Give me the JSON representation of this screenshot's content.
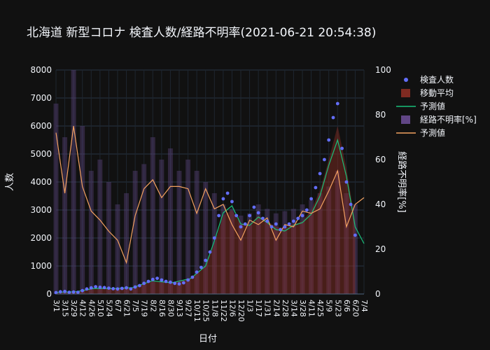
{
  "chart_data": {
    "type": "combo",
    "title": "北海道 新型コロナ 検査人数/経路不明率(2021-06-21 20:54:38)",
    "xlabel": "日付",
    "ylabel_left": "人数",
    "ylabel_right": "経路不明率[%]",
    "ylim_left": [
      0,
      8000
    ],
    "ylim_right": [
      0,
      100
    ],
    "yticks_left": [
      "0",
      "1000",
      "2000",
      "3000",
      "4000",
      "5000",
      "6000",
      "7000",
      "8000"
    ],
    "yticks_right": [
      "0",
      "20",
      "40",
      "60",
      "80",
      "100"
    ],
    "x_range": [
      "2020-03-01",
      "2021-07-04"
    ],
    "x_ticks": [
      "3/1",
      "3/15",
      "3/29",
      "4/12",
      "4/26",
      "5/10",
      "5/24",
      "6/7",
      "6/21",
      "7/5",
      "7/19",
      "8/2",
      "8/16",
      "8/30",
      "9/13",
      "9/27",
      "10/11",
      "10/25",
      "11/8",
      "11/22",
      "12/6",
      "12/20",
      "1/3",
      "1/17",
      "1/31",
      "2/14",
      "2/28",
      "3/14",
      "3/28",
      "4/11",
      "4/25",
      "5/9",
      "5/23",
      "6/6",
      "6/20",
      "7/4"
    ],
    "legend": {
      "position": "right",
      "items": [
        {
          "label": "検査人数",
          "kind": "marker",
          "color": "#636efa"
        },
        {
          "label": "移動平均",
          "kind": "bar",
          "color": "#8b2e24"
        },
        {
          "label": "予測値",
          "kind": "line",
          "color": "#19c07a"
        },
        {
          "label": "経路不明率[%]",
          "kind": "bar",
          "color": "#6a4c93"
        },
        {
          "label": "予測値",
          "kind": "line",
          "color": "#f4a261"
        }
      ]
    },
    "series": [
      {
        "name": "検査人数",
        "kind": "scatter",
        "axis": "left",
        "points": [
          [
            "2020-03-01",
            50
          ],
          [
            "2020-03-08",
            80
          ],
          [
            "2020-03-15",
            90
          ],
          [
            "2020-03-22",
            60
          ],
          [
            "2020-03-29",
            70
          ],
          [
            "2020-04-05",
            60
          ],
          [
            "2020-04-12",
            120
          ],
          [
            "2020-04-19",
            180
          ],
          [
            "2020-04-26",
            220
          ],
          [
            "2020-05-03",
            260
          ],
          [
            "2020-05-10",
            240
          ],
          [
            "2020-05-17",
            230
          ],
          [
            "2020-05-24",
            210
          ],
          [
            "2020-05-31",
            190
          ],
          [
            "2020-06-07",
            180
          ],
          [
            "2020-06-14",
            200
          ],
          [
            "2020-06-21",
            220
          ],
          [
            "2020-06-28",
            180
          ],
          [
            "2020-07-05",
            250
          ],
          [
            "2020-07-12",
            300
          ],
          [
            "2020-07-19",
            380
          ],
          [
            "2020-07-26",
            450
          ],
          [
            "2020-08-02",
            520
          ],
          [
            "2020-08-09",
            560
          ],
          [
            "2020-08-16",
            500
          ],
          [
            "2020-08-23",
            450
          ],
          [
            "2020-08-30",
            420
          ],
          [
            "2020-09-06",
            380
          ],
          [
            "2020-09-13",
            360
          ],
          [
            "2020-09-20",
            400
          ],
          [
            "2020-09-27",
            500
          ],
          [
            "2020-10-04",
            600
          ],
          [
            "2020-10-11",
            780
          ],
          [
            "2020-10-18",
            950
          ],
          [
            "2020-10-25",
            1200
          ],
          [
            "2020-11-01",
            1500
          ],
          [
            "2020-11-08",
            2000
          ],
          [
            "2020-11-15",
            2800
          ],
          [
            "2020-11-22",
            3400
          ],
          [
            "2020-11-29",
            3600
          ],
          [
            "2020-12-06",
            3300
          ],
          [
            "2020-12-13",
            2800
          ],
          [
            "2020-12-20",
            2400
          ],
          [
            "2020-12-27",
            2500
          ],
          [
            "2021-01-03",
            2800
          ],
          [
            "2021-01-10",
            3100
          ],
          [
            "2021-01-17",
            2900
          ],
          [
            "2021-01-24",
            2700
          ],
          [
            "2021-01-31",
            2600
          ],
          [
            "2021-02-07",
            2400
          ],
          [
            "2021-02-14",
            2500
          ],
          [
            "2021-02-21",
            2300
          ],
          [
            "2021-02-28",
            2400
          ],
          [
            "2021-03-07",
            2500
          ],
          [
            "2021-03-14",
            2600
          ],
          [
            "2021-03-21",
            2700
          ],
          [
            "2021-03-28",
            2800
          ],
          [
            "2021-04-04",
            3000
          ],
          [
            "2021-04-11",
            3400
          ],
          [
            "2021-04-18",
            3800
          ],
          [
            "2021-04-25",
            4300
          ],
          [
            "2021-05-02",
            4800
          ],
          [
            "2021-05-09",
            5500
          ],
          [
            "2021-05-16",
            6300
          ],
          [
            "2021-05-23",
            6800
          ],
          [
            "2021-05-30",
            5200
          ],
          [
            "2021-06-06",
            4000
          ],
          [
            "2021-06-13",
            3200
          ],
          [
            "2021-06-20",
            2100
          ]
        ]
      },
      {
        "name": "移動平均",
        "kind": "area",
        "axis": "left",
        "points": [
          [
            "2020-03-01",
            60
          ],
          [
            "2020-04-01",
            80
          ],
          [
            "2020-05-01",
            210
          ],
          [
            "2020-06-01",
            200
          ],
          [
            "2020-07-01",
            220
          ],
          [
            "2020-08-01",
            450
          ],
          [
            "2020-09-01",
            400
          ],
          [
            "2020-10-01",
            550
          ],
          [
            "2020-10-25",
            1000
          ],
          [
            "2020-11-08",
            1800
          ],
          [
            "2020-11-22",
            2800
          ],
          [
            "2020-12-06",
            3000
          ],
          [
            "2020-12-20",
            2500
          ],
          [
            "2021-01-03",
            2500
          ],
          [
            "2021-01-17",
            2800
          ],
          [
            "2021-01-31",
            2600
          ],
          [
            "2021-02-14",
            2400
          ],
          [
            "2021-02-28",
            2350
          ],
          [
            "2021-03-14",
            2500
          ],
          [
            "2021-03-28",
            2600
          ],
          [
            "2021-04-11",
            3000
          ],
          [
            "2021-04-25",
            3700
          ],
          [
            "2021-05-09",
            4800
          ],
          [
            "2021-05-23",
            6000
          ],
          [
            "2021-06-06",
            4500
          ],
          [
            "2021-06-20",
            2600
          ]
        ]
      },
      {
        "name": "予測値",
        "kind": "line",
        "axis": "left",
        "points": [
          [
            "2020-03-01",
            60
          ],
          [
            "2020-04-01",
            80
          ],
          [
            "2020-05-01",
            200
          ],
          [
            "2020-06-01",
            190
          ],
          [
            "2020-07-01",
            230
          ],
          [
            "2020-08-01",
            470
          ],
          [
            "2020-09-01",
            400
          ],
          [
            "2020-10-01",
            550
          ],
          [
            "2020-10-25",
            1000
          ],
          [
            "2020-11-08",
            1900
          ],
          [
            "2020-11-22",
            2900
          ],
          [
            "2020-12-06",
            3150
          ],
          [
            "2020-12-20",
            2500
          ],
          [
            "2021-01-03",
            2450
          ],
          [
            "2021-01-17",
            2750
          ],
          [
            "2021-01-31",
            2550
          ],
          [
            "2021-02-14",
            2300
          ],
          [
            "2021-02-28",
            2250
          ],
          [
            "2021-03-14",
            2450
          ],
          [
            "2021-03-28",
            2550
          ],
          [
            "2021-04-11",
            2850
          ],
          [
            "2021-04-25",
            3500
          ],
          [
            "2021-05-09",
            4600
          ],
          [
            "2021-05-23",
            5500
          ],
          [
            "2021-06-06",
            4200
          ],
          [
            "2021-06-20",
            2400
          ],
          [
            "2021-07-04",
            1800
          ]
        ]
      },
      {
        "name": "経路不明率[%]",
        "kind": "bar",
        "axis": "right",
        "points": [
          [
            "2020-03-01",
            85
          ],
          [
            "2020-03-15",
            70
          ],
          [
            "2020-03-29",
            100
          ],
          [
            "2020-04-12",
            75
          ],
          [
            "2020-04-26",
            55
          ],
          [
            "2020-05-10",
            60
          ],
          [
            "2020-05-24",
            50
          ],
          [
            "2020-06-07",
            40
          ],
          [
            "2020-06-21",
            45
          ],
          [
            "2020-07-05",
            55
          ],
          [
            "2020-07-19",
            58
          ],
          [
            "2020-08-02",
            70
          ],
          [
            "2020-08-16",
            60
          ],
          [
            "2020-08-30",
            65
          ],
          [
            "2020-09-13",
            55
          ],
          [
            "2020-09-27",
            60
          ],
          [
            "2020-10-11",
            55
          ],
          [
            "2020-10-25",
            50
          ],
          [
            "2020-11-08",
            45
          ],
          [
            "2020-11-22",
            40
          ],
          [
            "2020-12-06",
            38
          ],
          [
            "2020-12-20",
            35
          ],
          [
            "2021-01-03",
            36
          ],
          [
            "2021-01-17",
            40
          ],
          [
            "2021-01-31",
            38
          ],
          [
            "2021-02-14",
            36
          ],
          [
            "2021-02-28",
            37
          ],
          [
            "2021-03-14",
            38
          ],
          [
            "2021-03-28",
            40
          ],
          [
            "2021-04-11",
            42
          ],
          [
            "2021-04-25",
            45
          ],
          [
            "2021-05-09",
            48
          ],
          [
            "2021-05-23",
            55
          ],
          [
            "2021-06-06",
            45
          ],
          [
            "2021-06-20",
            40
          ]
        ]
      },
      {
        "name": "予測値",
        "kind": "line",
        "axis": "right",
        "points": [
          [
            "2020-03-01",
            72
          ],
          [
            "2020-03-15",
            45
          ],
          [
            "2020-03-29",
            75
          ],
          [
            "2020-04-12",
            48
          ],
          [
            "2020-04-26",
            37
          ],
          [
            "2020-05-10",
            33
          ],
          [
            "2020-05-24",
            28
          ],
          [
            "2020-06-07",
            24
          ],
          [
            "2020-06-21",
            14
          ],
          [
            "2020-07-05",
            35
          ],
          [
            "2020-07-19",
            47
          ],
          [
            "2020-08-02",
            51
          ],
          [
            "2020-08-16",
            43
          ],
          [
            "2020-08-30",
            48
          ],
          [
            "2020-09-13",
            48
          ],
          [
            "2020-09-27",
            47
          ],
          [
            "2020-10-11",
            36
          ],
          [
            "2020-10-25",
            47
          ],
          [
            "2020-11-08",
            38
          ],
          [
            "2020-11-22",
            40
          ],
          [
            "2020-12-06",
            31
          ],
          [
            "2020-12-20",
            24
          ],
          [
            "2021-01-03",
            33
          ],
          [
            "2021-01-17",
            31
          ],
          [
            "2021-01-31",
            34
          ],
          [
            "2021-02-14",
            24
          ],
          [
            "2021-02-28",
            31
          ],
          [
            "2021-03-14",
            30
          ],
          [
            "2021-03-28",
            37
          ],
          [
            "2021-04-11",
            36
          ],
          [
            "2021-04-25",
            38
          ],
          [
            "2021-05-09",
            46
          ],
          [
            "2021-05-23",
            55
          ],
          [
            "2021-06-06",
            30
          ],
          [
            "2021-06-20",
            40
          ],
          [
            "2021-07-04",
            43
          ]
        ]
      }
    ]
  }
}
